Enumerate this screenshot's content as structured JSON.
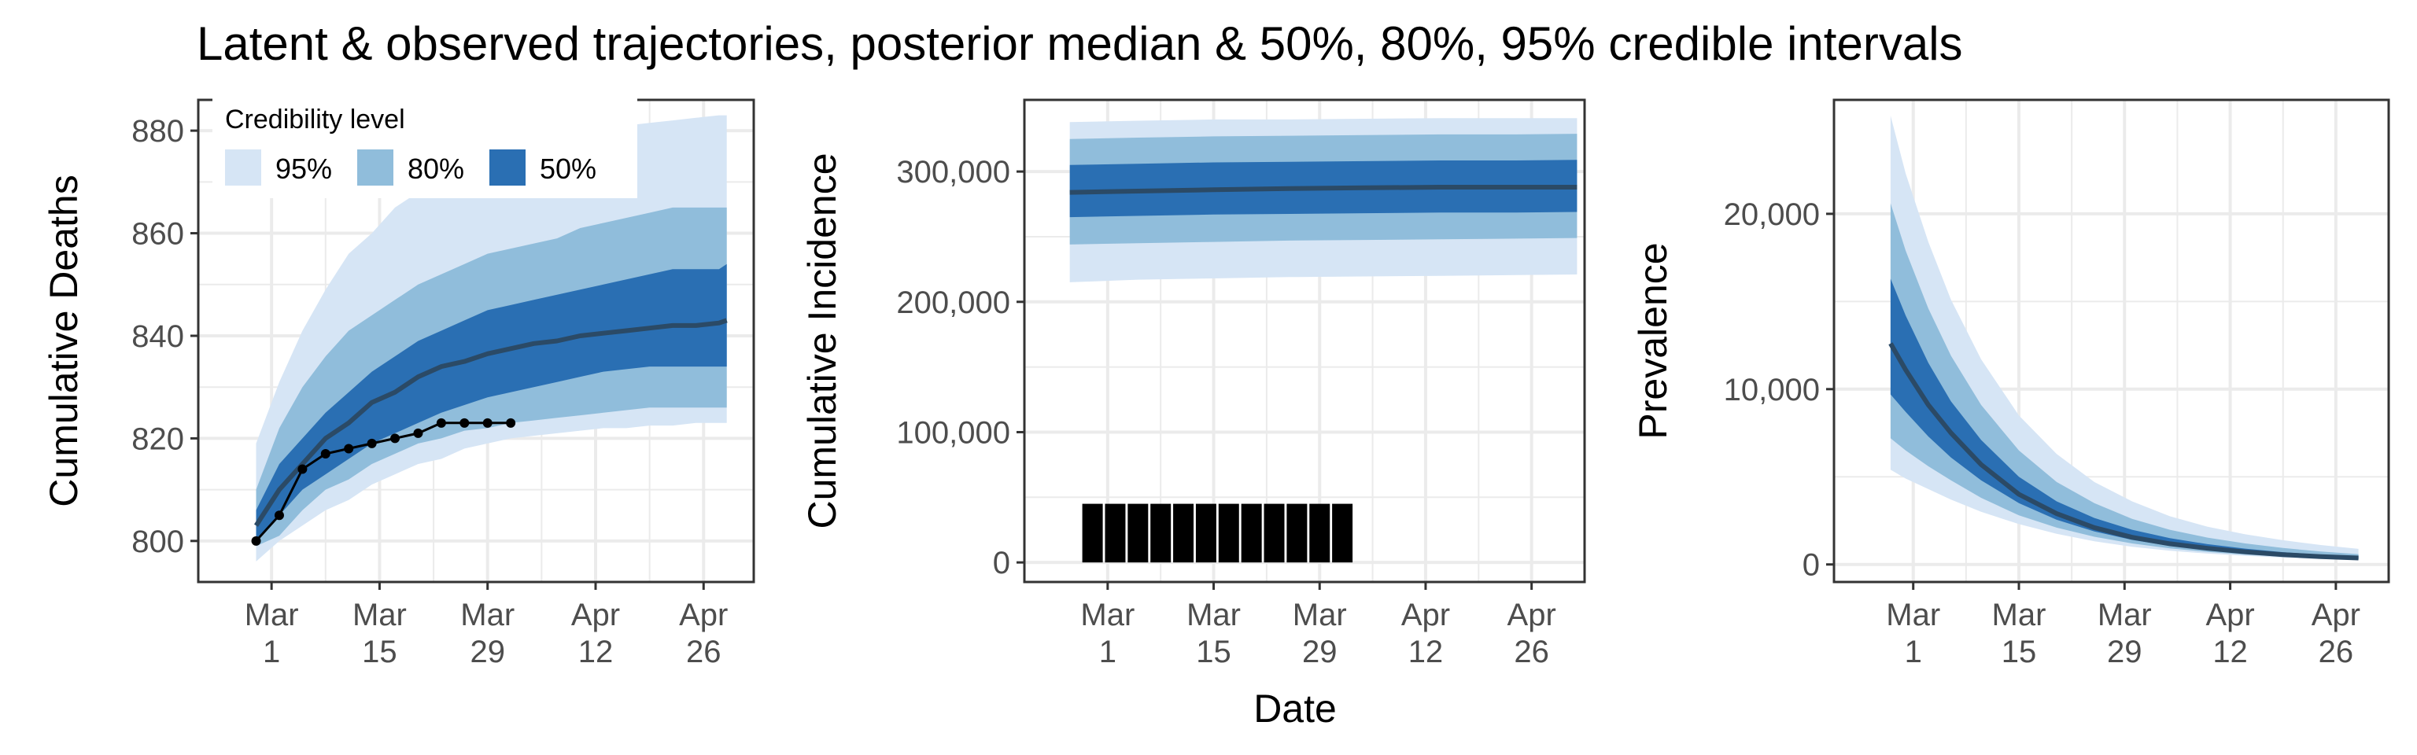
{
  "title": "Latent & observed trajectories, posterior median & 50%, 80%, 95% credible intervals",
  "shared_xlabel": "Date",
  "legend": {
    "title": "Credibility level",
    "items": [
      {
        "label": "95%",
        "color": "#d6e5f5"
      },
      {
        "label": "80%",
        "color": "#90bddb"
      },
      {
        "label": "50%",
        "color": "#2a6fb3"
      }
    ]
  },
  "colors": {
    "median": "#2b4a66",
    "observed": "#000000",
    "grid": "#ebebeb",
    "frame": "#333333"
  },
  "chart_data": [
    {
      "type": "area",
      "ylabel": "Cumulative Deaths",
      "x_tick_labels": [
        [
          "Mar",
          "1"
        ],
        [
          "Mar",
          "15"
        ],
        [
          "Mar",
          "29"
        ],
        [
          "Apr",
          "12"
        ],
        [
          "Apr",
          "26"
        ]
      ],
      "y_tick_labels": [
        "800",
        "820",
        "840",
        "860",
        "880"
      ],
      "x_ticks": [
        1,
        15,
        29,
        43,
        57
      ],
      "y_ticks": [
        800,
        820,
        840,
        860,
        880
      ],
      "xlim": [
        -8.5,
        63.5
      ],
      "ylim": [
        792,
        886
      ],
      "x": [
        -1,
        2,
        5,
        8,
        11,
        14,
        17,
        20,
        23,
        26,
        29,
        32,
        35,
        38,
        41,
        44,
        47,
        50,
        53,
        56,
        59,
        60
      ],
      "median": [
        803,
        810,
        815,
        820,
        823,
        827,
        829,
        832,
        834,
        835,
        836.5,
        837.5,
        838.5,
        839,
        840,
        840.5,
        841,
        841.5,
        842,
        842,
        842.5,
        843
      ],
      "band_50": {
        "lower": [
          800,
          805,
          810,
          813,
          816,
          819,
          821,
          823,
          825,
          826.5,
          828,
          829,
          830,
          831,
          832,
          833,
          833.5,
          834,
          834,
          834,
          834,
          834
        ],
        "upper": [
          806,
          815,
          820,
          825,
          829,
          833,
          836,
          839,
          841,
          843,
          845,
          846,
          847,
          848,
          849,
          850,
          851,
          852,
          853,
          853,
          853,
          854
        ]
      },
      "band_80": {
        "lower": [
          799,
          801,
          806,
          810,
          812,
          815,
          817,
          819,
          820,
          821.5,
          822,
          823,
          823.5,
          824,
          824.5,
          825,
          825.5,
          826,
          826,
          826,
          826,
          826
        ]
      },
      "band_80_upper": [
        810,
        822,
        830,
        836,
        841,
        844,
        847,
        850,
        852,
        854,
        856,
        857,
        858,
        859,
        861,
        862,
        863,
        864,
        865,
        865,
        865,
        865
      ],
      "band_95": {
        "lower": [
          796,
          800,
          803,
          806,
          808,
          811,
          813,
          815,
          816,
          818,
          819,
          820,
          820.5,
          821,
          821.5,
          822,
          822,
          822.5,
          822.5,
          823,
          823,
          823
        ],
        "upper": [
          819,
          831,
          841,
          849,
          856,
          860,
          865,
          868,
          870,
          873,
          875,
          876,
          878,
          879,
          880,
          880.5,
          881,
          881.5,
          882,
          882.5,
          883,
          883
        ]
      },
      "observed": {
        "x": [
          -1,
          2,
          5,
          8,
          11,
          14,
          17,
          20,
          23,
          26,
          29,
          32
        ],
        "y": [
          800,
          805,
          814,
          817,
          818,
          819,
          820,
          821,
          823,
          823,
          823,
          823
        ]
      }
    },
    {
      "type": "area",
      "ylabel": "Cumulative Incidence",
      "x_tick_labels": [
        [
          "Mar",
          "1"
        ],
        [
          "Mar",
          "15"
        ],
        [
          "Mar",
          "29"
        ],
        [
          "Apr",
          "12"
        ],
        [
          "Apr",
          "26"
        ]
      ],
      "y_tick_labels": [
        "0",
        "100,000",
        "200,000",
        "300,000"
      ],
      "x_ticks": [
        1,
        15,
        29,
        43,
        57
      ],
      "y_ticks": [
        0,
        100000,
        200000,
        300000
      ],
      "xlim": [
        -10,
        64
      ],
      "ylim": [
        -15000,
        355000
      ],
      "x": [
        -4,
        5,
        15,
        25,
        35,
        45,
        55,
        63
      ],
      "median": [
        284000,
        285000,
        286000,
        287000,
        287500,
        288000,
        288000,
        288000
      ],
      "band_50": {
        "lower": [
          265000,
          266000,
          267000,
          267500,
          268000,
          268500,
          268500,
          269000
        ],
        "upper": [
          305000,
          306000,
          307000,
          307500,
          308000,
          308500,
          308500,
          309000
        ]
      },
      "band_80": {
        "lower": [
          244000,
          245000,
          246000,
          247000,
          247500,
          248000,
          248500,
          249000
        ],
        "upper": [
          325000,
          326000,
          327000,
          327500,
          328000,
          328500,
          328500,
          329000
        ]
      },
      "band_95": {
        "lower": [
          215000,
          217000,
          218000,
          219000,
          219500,
          220000,
          220500,
          221000
        ],
        "upper": [
          338000,
          339000,
          340000,
          340000,
          340500,
          341000,
          341000,
          341000
        ]
      },
      "observed_bars": {
        "x": [
          -1,
          2,
          5,
          8,
          11,
          14,
          17,
          20,
          23,
          26,
          29,
          32
        ],
        "y": [
          45000,
          45000,
          45000,
          45000,
          45000,
          45000,
          45000,
          45000,
          45000,
          45000,
          45000,
          45000
        ]
      }
    },
    {
      "type": "area",
      "ylabel": "Prevalence",
      "x_tick_labels": [
        [
          "Mar",
          "1"
        ],
        [
          "Mar",
          "15"
        ],
        [
          "Mar",
          "29"
        ],
        [
          "Apr",
          "12"
        ],
        [
          "Apr",
          "26"
        ]
      ],
      "y_tick_labels": [
        "0",
        "10,000",
        "20,000"
      ],
      "x_ticks": [
        1,
        15,
        29,
        43,
        57
      ],
      "y_ticks": [
        0,
        10000,
        20000
      ],
      "xlim": [
        -9.5,
        64
      ],
      "ylim": [
        -1000,
        26500
      ],
      "x": [
        -2,
        0,
        3,
        6,
        10,
        15,
        20,
        25,
        30,
        35,
        40,
        45,
        50,
        55,
        60
      ],
      "median": [
        12600,
        11100,
        9100,
        7500,
        5700,
        4000,
        2900,
        2100,
        1550,
        1180,
        920,
        720,
        560,
        450,
        370
      ],
      "band_50": {
        "lower": [
          9700,
          8700,
          7300,
          6100,
          4800,
          3500,
          2550,
          1880,
          1400,
          1060,
          830,
          650,
          500,
          390,
          310
        ],
        "upper": [
          16300,
          14200,
          11500,
          9300,
          7100,
          5000,
          3600,
          2650,
          1980,
          1500,
          1160,
          900,
          700,
          550,
          430
        ]
      },
      "band_80": {
        "lower": [
          7200,
          6500,
          5600,
          4800,
          3800,
          2800,
          2100,
          1580,
          1200,
          920,
          720,
          560,
          440,
          350,
          280
        ],
        "upper": [
          20600,
          17900,
          14600,
          11900,
          9100,
          6500,
          4700,
          3500,
          2600,
          1980,
          1530,
          1200,
          940,
          740,
          590
        ]
      },
      "band_95": {
        "lower": [
          5400,
          4900,
          4300,
          3700,
          3000,
          2300,
          1750,
          1320,
          1010,
          780,
          620,
          490,
          390,
          310,
          250
        ],
        "upper": [
          25600,
          22300,
          18400,
          15100,
          11700,
          8500,
          6300,
          4700,
          3600,
          2750,
          2150,
          1720,
          1380,
          1110,
          890
        ]
      }
    }
  ]
}
